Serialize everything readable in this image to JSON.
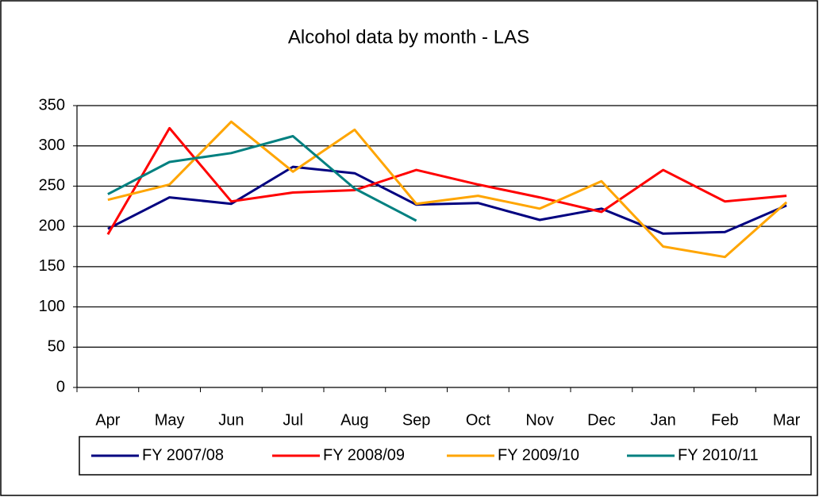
{
  "chart_data": {
    "type": "line",
    "title": "Alcohol data by month - LAS",
    "categories": [
      "Apr",
      "May",
      "Jun",
      "Jul",
      "Aug",
      "Sep",
      "Oct",
      "Nov",
      "Dec",
      "Jan",
      "Feb",
      "Mar"
    ],
    "series": [
      {
        "name": "FY 2007/08",
        "color": "#000080",
        "values": [
          197,
          236,
          228,
          274,
          266,
          227,
          229,
          208,
          222,
          191,
          193,
          226
        ]
      },
      {
        "name": "FY 2008/09",
        "color": "#ff0000",
        "values": [
          190,
          322,
          231,
          242,
          245,
          270,
          252,
          236,
          218,
          270,
          231,
          238
        ]
      },
      {
        "name": "FY 2009/10",
        "color": "#ffa500",
        "values": [
          233,
          252,
          330,
          268,
          320,
          228,
          238,
          222,
          256,
          175,
          162,
          230
        ]
      },
      {
        "name": "FY 2010/11",
        "color": "#008080",
        "values": [
          240,
          280,
          291,
          312,
          247,
          207,
          null,
          null,
          null,
          null,
          null,
          null
        ]
      }
    ],
    "ylim": [
      0,
      350
    ],
    "yticks": [
      0,
      50,
      100,
      150,
      200,
      250,
      300,
      350
    ],
    "grid": true,
    "legend": "bottom"
  }
}
